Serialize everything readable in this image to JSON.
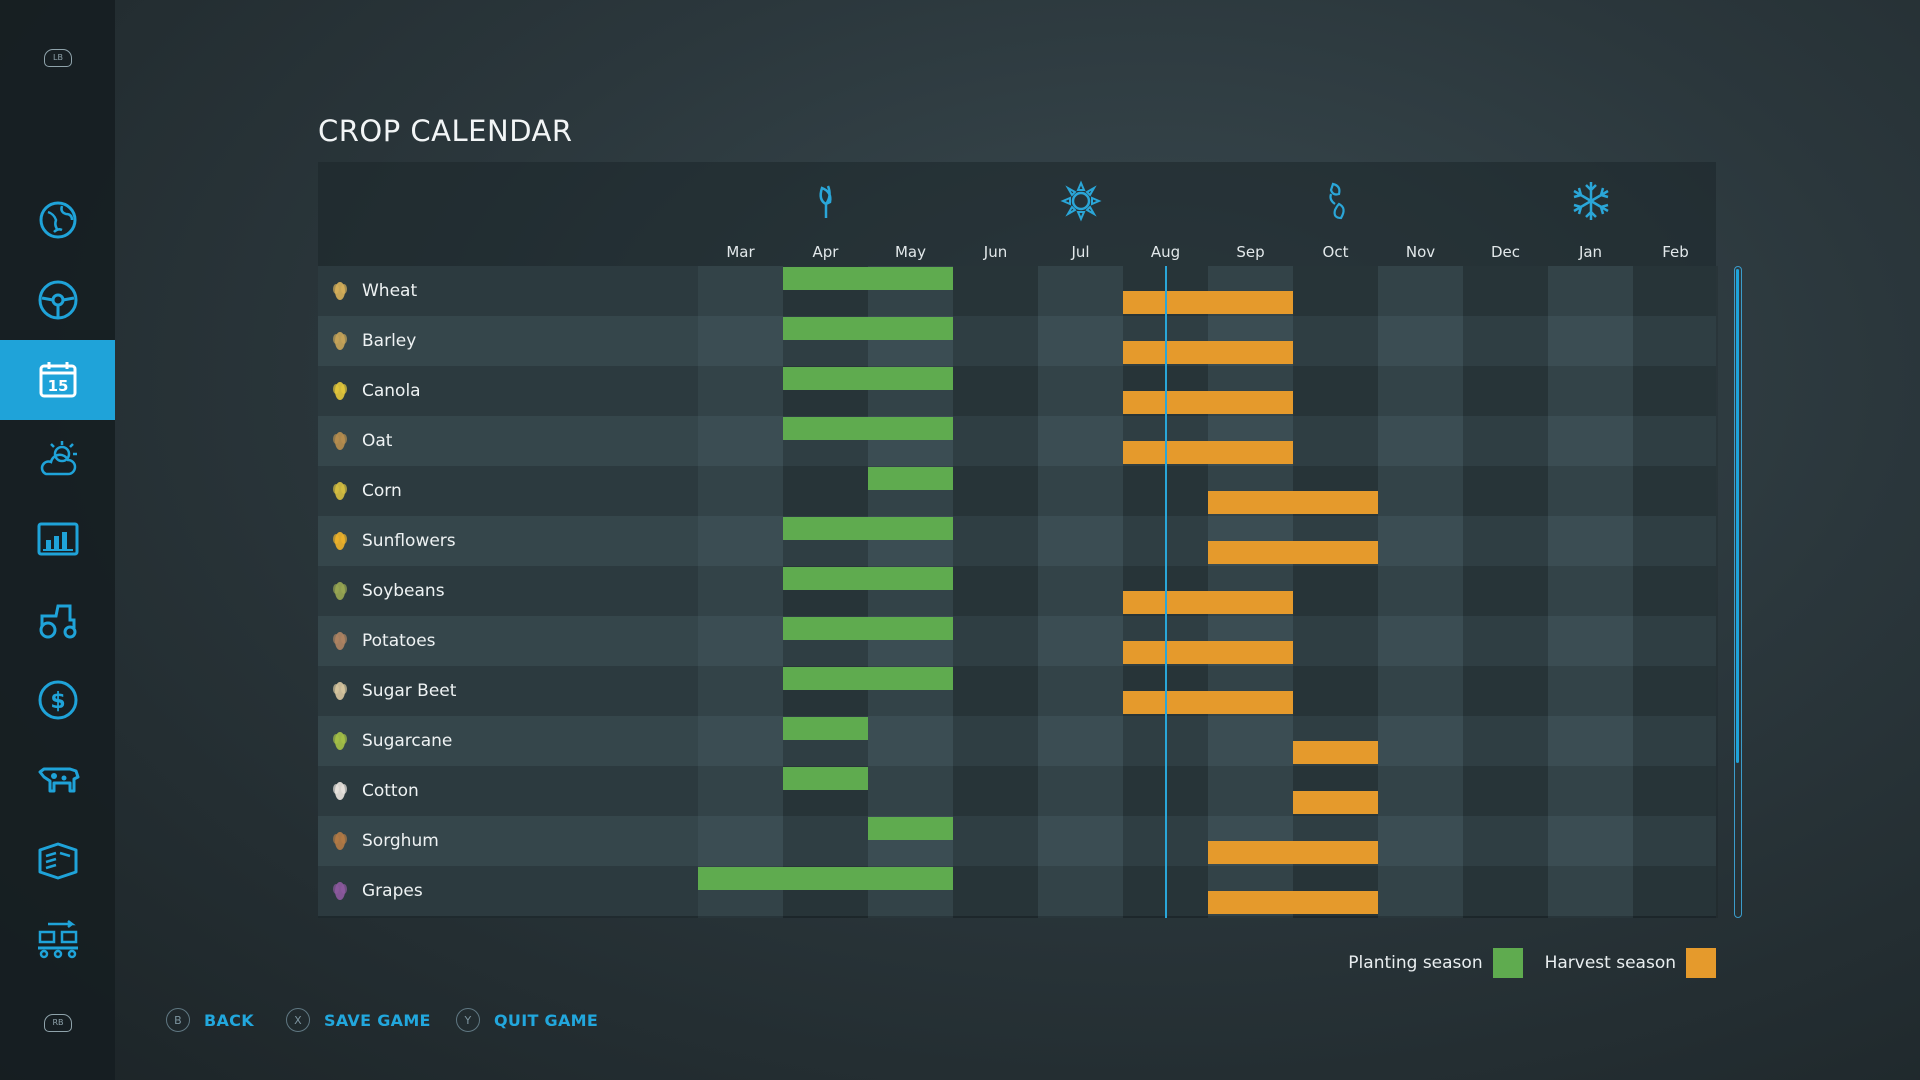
{
  "sidebar": {
    "top_bumper": "LB",
    "bottom_bumper": "RB",
    "items": [
      {
        "icon": "globe-map-icon",
        "active": false
      },
      {
        "icon": "steering-wheel-icon",
        "active": false
      },
      {
        "icon": "calendar-icon",
        "active": true,
        "badge": "15"
      },
      {
        "icon": "weather-icon",
        "active": false
      },
      {
        "icon": "statistics-icon",
        "active": false
      },
      {
        "icon": "tractor-icon",
        "active": false
      },
      {
        "icon": "finance-icon",
        "active": false
      },
      {
        "icon": "animals-icon",
        "active": false
      },
      {
        "icon": "help-book-icon",
        "active": false
      },
      {
        "icon": "production-chain-icon",
        "active": false
      }
    ]
  },
  "title": "CROP CALENDAR",
  "seasons": [
    {
      "name": "spring-icon",
      "month_index": 1
    },
    {
      "name": "summer-icon",
      "month_index": 4
    },
    {
      "name": "autumn-icon",
      "month_index": 7
    },
    {
      "name": "winter-icon",
      "month_index": 10
    }
  ],
  "months": [
    "Mar",
    "Apr",
    "May",
    "Jun",
    "Jul",
    "Aug",
    "Sep",
    "Oct",
    "Nov",
    "Dec",
    "Jan",
    "Feb"
  ],
  "current_month_position": 5.5,
  "crops": [
    {
      "name": "Wheat",
      "icon": "wheat-icon",
      "plant": [
        1,
        2
      ],
      "harvest": [
        5,
        6
      ]
    },
    {
      "name": "Barley",
      "icon": "barley-icon",
      "plant": [
        1,
        2
      ],
      "harvest": [
        5,
        6
      ]
    },
    {
      "name": "Canola",
      "icon": "canola-icon",
      "plant": [
        1,
        2
      ],
      "harvest": [
        5,
        6
      ]
    },
    {
      "name": "Oat",
      "icon": "oat-icon",
      "plant": [
        1,
        2
      ],
      "harvest": [
        5,
        6
      ]
    },
    {
      "name": "Corn",
      "icon": "corn-icon",
      "plant": [
        2
      ],
      "harvest": [
        6,
        7
      ]
    },
    {
      "name": "Sunflowers",
      "icon": "sunflower-icon",
      "plant": [
        1,
        2
      ],
      "harvest": [
        6,
        7
      ]
    },
    {
      "name": "Soybeans",
      "icon": "soybeans-icon",
      "plant": [
        1,
        2
      ],
      "harvest": [
        5,
        6
      ]
    },
    {
      "name": "Potatoes",
      "icon": "potato-icon",
      "plant": [
        1,
        2
      ],
      "harvest": [
        5,
        6
      ]
    },
    {
      "name": "Sugar Beet",
      "icon": "sugar-beet-icon",
      "plant": [
        1,
        2
      ],
      "harvest": [
        5,
        6
      ]
    },
    {
      "name": "Sugarcane",
      "icon": "sugarcane-icon",
      "plant": [
        1
      ],
      "harvest": [
        7
      ]
    },
    {
      "name": "Cotton",
      "icon": "cotton-icon",
      "plant": [
        1
      ],
      "harvest": [
        7
      ]
    },
    {
      "name": "Sorghum",
      "icon": "sorghum-icon",
      "plant": [
        2
      ],
      "harvest": [
        6,
        7
      ]
    },
    {
      "name": "Grapes",
      "icon": "grapes-icon",
      "plant": [
        0,
        1,
        2
      ],
      "harvest": [
        6,
        7
      ]
    }
  ],
  "legend": {
    "planting_label": "Planting season",
    "harvest_label": "Harvest season",
    "planting_color": "#5fab4f",
    "harvest_color": "#e59a2c"
  },
  "footer": {
    "back": {
      "key": "B",
      "label": "BACK"
    },
    "save": {
      "key": "X",
      "label": "SAVE GAME"
    },
    "quit": {
      "key": "Y",
      "label": "QUIT GAME"
    }
  }
}
